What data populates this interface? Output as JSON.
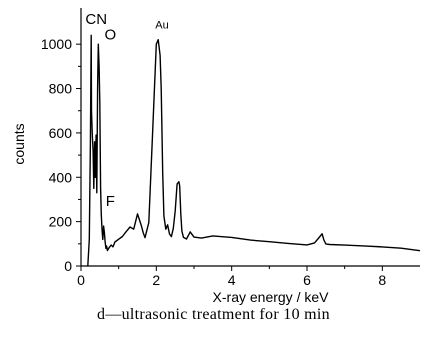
{
  "chart_data": {
    "type": "line",
    "title": "",
    "xlabel": "X-ray energy / keV",
    "ylabel": "counts",
    "xlim": [
      0,
      9
    ],
    "ylim": [
      0,
      1100
    ],
    "x_ticks": [
      0,
      2,
      4,
      6,
      8
    ],
    "y_ticks": [
      0,
      200,
      400,
      600,
      800,
      1000
    ],
    "grid": false,
    "series": [
      {
        "x": [
          0.18,
          0.22,
          0.25,
          0.27,
          0.28,
          0.3,
          0.32,
          0.34,
          0.36,
          0.38,
          0.4,
          0.42,
          0.44,
          0.46,
          0.48,
          0.5,
          0.52,
          0.54,
          0.56,
          0.58,
          0.6,
          0.62,
          0.64,
          0.66,
          0.68,
          0.7,
          0.75,
          0.8,
          0.85,
          0.9,
          1.0,
          1.1,
          1.2,
          1.3,
          1.4,
          1.5,
          1.6,
          1.65,
          1.7,
          1.8,
          1.9,
          2.0,
          2.05,
          2.1,
          2.13,
          2.15,
          2.17,
          2.2,
          2.25,
          2.3,
          2.35,
          2.4,
          2.45,
          2.5,
          2.55,
          2.6,
          2.62,
          2.65,
          2.68,
          2.72,
          2.8,
          2.9,
          3.0,
          3.2,
          3.5,
          4.0,
          4.5,
          5.0,
          5.5,
          6.0,
          6.2,
          6.3,
          6.4,
          6.45,
          6.5,
          6.6,
          7.0,
          7.5,
          8.0,
          8.5,
          9.0
        ],
        "y": [
          0,
          120,
          560,
          1040,
          700,
          590,
          520,
          350,
          560,
          400,
          590,
          330,
          800,
          1000,
          900,
          740,
          350,
          230,
          160,
          120,
          180,
          150,
          110,
          80,
          90,
          70,
          90,
          100,
          90,
          110,
          120,
          130,
          150,
          170,
          160,
          230,
          180,
          150,
          130,
          200,
          600,
          1000,
          1020,
          950,
          800,
          600,
          420,
          220,
          160,
          180,
          140,
          130,
          170,
          250,
          370,
          380,
          360,
          240,
          160,
          130,
          120,
          150,
          125,
          120,
          130,
          125,
          115,
          110,
          105,
          100,
          110,
          130,
          150,
          120,
          100,
          95,
          90,
          85,
          80,
          75,
          65
        ]
      }
    ],
    "annotations": [
      {
        "text": "C",
        "x": 0.26,
        "y": 1090
      },
      {
        "text": "N",
        "x": 0.55,
        "y": 1090
      },
      {
        "text": "O",
        "x": 0.78,
        "y": 1020
      },
      {
        "text": "F",
        "x": 0.78,
        "y": 270
      },
      {
        "text": "Au",
        "x": 2.15,
        "y": 1070
      }
    ]
  },
  "caption": "d—ultrasonic treatment for 10 min"
}
